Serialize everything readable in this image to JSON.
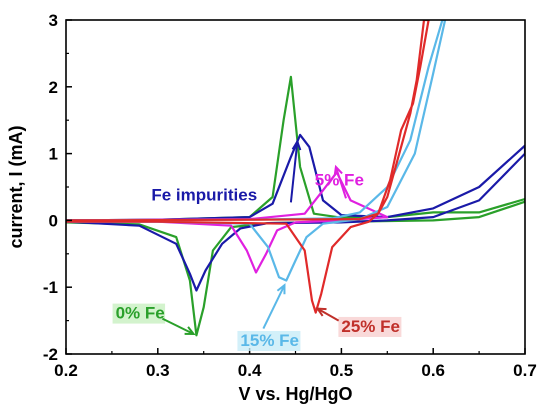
{
  "chart_data": {
    "type": "line",
    "title": "",
    "xlabel": "V vs. Hg/HgO",
    "ylabel": "current, I (mA)",
    "xlim": [
      0.2,
      0.7
    ],
    "ylim": [
      -2,
      3
    ],
    "xticks": [
      0.2,
      0.3,
      0.4,
      0.5,
      0.6,
      0.7
    ],
    "xtick_labels": [
      "0.2",
      "0.3",
      "0.4",
      "0.5",
      "0.6",
      "0.7"
    ],
    "yticks": [
      -2,
      -1,
      0,
      1,
      2,
      3
    ],
    "ytick_labels": [
      "-2",
      "-1",
      "0",
      "1",
      "2",
      "3"
    ],
    "grid": false,
    "legend": "none",
    "annotations": [
      {
        "text": "Fe impurities",
        "color": "#1a1aa8"
      },
      {
        "text": "5% Fe",
        "color": "#e020e0"
      },
      {
        "text": "0% Fe",
        "color": "#2aa02a"
      },
      {
        "text": "15% Fe",
        "color": "#5ab8e8"
      },
      {
        "text": "25% Fe",
        "color": "#c0302a"
      }
    ],
    "series": [
      {
        "color": "#2aa02a",
        "points": [
          [
            0.2,
            -0.03
          ],
          [
            0.28,
            -0.06
          ],
          [
            0.32,
            -0.25
          ],
          [
            0.335,
            -0.9
          ],
          [
            0.342,
            -1.72
          ],
          [
            0.35,
            -1.3
          ],
          [
            0.36,
            -0.45
          ],
          [
            0.38,
            -0.1
          ],
          [
            0.42,
            -0.04
          ],
          [
            0.5,
            -0.02
          ],
          [
            0.6,
            0.0
          ],
          [
            0.65,
            0.05
          ],
          [
            0.7,
            0.28
          ],
          [
            0.7,
            0.32
          ],
          [
            0.65,
            0.12
          ],
          [
            0.6,
            0.12
          ],
          [
            0.55,
            0.05
          ],
          [
            0.5,
            0.04
          ],
          [
            0.47,
            0.1
          ],
          [
            0.455,
            0.8
          ],
          [
            0.445,
            2.15
          ],
          [
            0.437,
            1.5
          ],
          [
            0.425,
            0.35
          ],
          [
            0.4,
            0.05
          ],
          [
            0.3,
            0.01
          ],
          [
            0.2,
            0.0
          ]
        ]
      },
      {
        "color": "#1a1aa8",
        "points": [
          [
            0.2,
            -0.02
          ],
          [
            0.28,
            -0.08
          ],
          [
            0.32,
            -0.35
          ],
          [
            0.335,
            -0.8
          ],
          [
            0.342,
            -1.05
          ],
          [
            0.352,
            -0.75
          ],
          [
            0.37,
            -0.35
          ],
          [
            0.39,
            -0.12
          ],
          [
            0.42,
            -0.04
          ],
          [
            0.5,
            -0.03
          ],
          [
            0.55,
            0.0
          ],
          [
            0.6,
            0.05
          ],
          [
            0.65,
            0.3
          ],
          [
            0.7,
            1.0
          ],
          [
            0.7,
            1.12
          ],
          [
            0.65,
            0.5
          ],
          [
            0.6,
            0.18
          ],
          [
            0.55,
            0.05
          ],
          [
            0.5,
            0.08
          ],
          [
            0.48,
            0.3
          ],
          [
            0.465,
            1.1
          ],
          [
            0.455,
            1.28
          ],
          [
            0.445,
            0.95
          ],
          [
            0.425,
            0.25
          ],
          [
            0.4,
            0.05
          ],
          [
            0.3,
            0.01
          ],
          [
            0.2,
            0.0
          ]
        ]
      },
      {
        "color": "#e020e0",
        "points": [
          [
            0.2,
            -0.02
          ],
          [
            0.3,
            -0.02
          ],
          [
            0.38,
            -0.08
          ],
          [
            0.397,
            -0.45
          ],
          [
            0.407,
            -0.78
          ],
          [
            0.418,
            -0.5
          ],
          [
            0.43,
            -0.15
          ],
          [
            0.45,
            -0.03
          ],
          [
            0.5,
            0.0
          ],
          [
            0.55,
            0.05
          ],
          [
            0.51,
            0.3
          ],
          [
            0.495,
            0.72
          ],
          [
            0.48,
            0.45
          ],
          [
            0.46,
            0.1
          ],
          [
            0.4,
            0.02
          ],
          [
            0.2,
            0.0
          ]
        ]
      },
      {
        "color": "#5ab8e8",
        "points": [
          [
            0.2,
            -0.02
          ],
          [
            0.3,
            -0.02
          ],
          [
            0.4,
            -0.05
          ],
          [
            0.42,
            -0.4
          ],
          [
            0.432,
            -0.85
          ],
          [
            0.44,
            -0.9
          ],
          [
            0.45,
            -0.6
          ],
          [
            0.462,
            -0.25
          ],
          [
            0.48,
            -0.05
          ],
          [
            0.52,
            0.02
          ],
          [
            0.55,
            0.2
          ],
          [
            0.58,
            1.0
          ],
          [
            0.6,
            2.2
          ],
          [
            0.613,
            3.0
          ],
          [
            0.61,
            3.0
          ],
          [
            0.595,
            2.3
          ],
          [
            0.575,
            1.2
          ],
          [
            0.55,
            0.5
          ],
          [
            0.52,
            0.12
          ],
          [
            0.49,
            0.03
          ],
          [
            0.4,
            0.01
          ],
          [
            0.2,
            0.0
          ]
        ]
      },
      {
        "color": "#e02a2a",
        "points": [
          [
            0.2,
            -0.02
          ],
          [
            0.3,
            -0.02
          ],
          [
            0.44,
            -0.05
          ],
          [
            0.46,
            -0.45
          ],
          [
            0.468,
            -1.2
          ],
          [
            0.472,
            -1.38
          ],
          [
            0.478,
            -1.1
          ],
          [
            0.49,
            -0.4
          ],
          [
            0.51,
            -0.1
          ],
          [
            0.53,
            -0.02
          ],
          [
            0.54,
            0.1
          ],
          [
            0.55,
            0.35
          ],
          [
            0.565,
            1.1
          ],
          [
            0.575,
            1.6
          ],
          [
            0.582,
            2.1
          ],
          [
            0.59,
            3.0
          ],
          [
            0.595,
            3.0
          ],
          [
            0.586,
            2.3
          ],
          [
            0.578,
            1.75
          ],
          [
            0.565,
            1.35
          ],
          [
            0.553,
            0.6
          ],
          [
            0.54,
            0.1
          ],
          [
            0.52,
            0.02
          ],
          [
            0.4,
            0.01
          ],
          [
            0.2,
            0.0
          ]
        ]
      }
    ]
  }
}
